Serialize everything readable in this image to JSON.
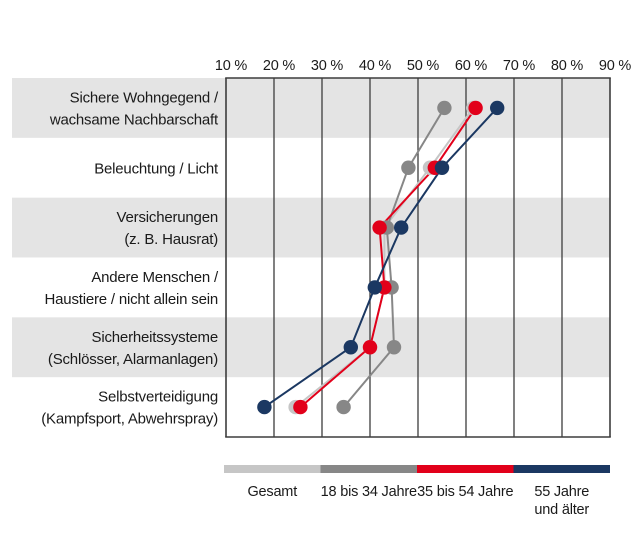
{
  "chart_data": {
    "type": "line",
    "variant": "dot-plot-with-vertical-category-rows",
    "x_axis": {
      "position": "top",
      "min": 10,
      "max": 90,
      "tick_labels": [
        "10 %",
        "20 %",
        "30 %",
        "40 %",
        "50 %",
        "60 %",
        "70 %",
        "80 %",
        "90 %"
      ],
      "grid": true
    },
    "categories": [
      [
        "Sichere Wohngegend /",
        "wachsame Nachbarschaft"
      ],
      [
        "Beleuchtung / Licht"
      ],
      [
        "Versicherungen",
        "(z. B. Hausrat)"
      ],
      [
        "Andere Menschen /",
        "Haustiere / nicht allein sein"
      ],
      [
        "Sicherheitssysteme",
        "(Schlösser, Alarmanlagen)"
      ],
      [
        "Selbstverteidigung",
        "(Kampfsport, Abwehrspray)"
      ]
    ],
    "series": [
      {
        "name": "Gesamt",
        "color": "#c6c6c6",
        "values": [
          61.5,
          52.5,
          43,
          43,
          40,
          24.5
        ]
      },
      {
        "name": "18 bis 34 Jahre",
        "color": "#878787",
        "values": [
          55.5,
          48,
          43.5,
          44.5,
          45,
          34.5
        ]
      },
      {
        "name": "35 bis 54 Jahre",
        "color": "#e2001a",
        "values": [
          62,
          53.5,
          42,
          43,
          40,
          25.5
        ]
      },
      {
        "name": "55 Jahre und älter",
        "color": "#1b3862",
        "values": [
          66.5,
          55,
          46.5,
          41,
          36,
          18
        ]
      }
    ],
    "legend": {
      "position": "bottom",
      "items": [
        {
          "label_lines": [
            "Gesamt"
          ]
        },
        {
          "label_lines": [
            "18 bis 34 Jahre"
          ]
        },
        {
          "label_lines": [
            "35 bis 54 Jahre"
          ]
        },
        {
          "label_lines": [
            "55 Jahre",
            "und älter"
          ]
        }
      ]
    },
    "colors": {
      "row_band": "#e4e4e4",
      "grid": "#3d3d3d",
      "text": "#1a1a1a",
      "background": "#ffffff"
    }
  }
}
